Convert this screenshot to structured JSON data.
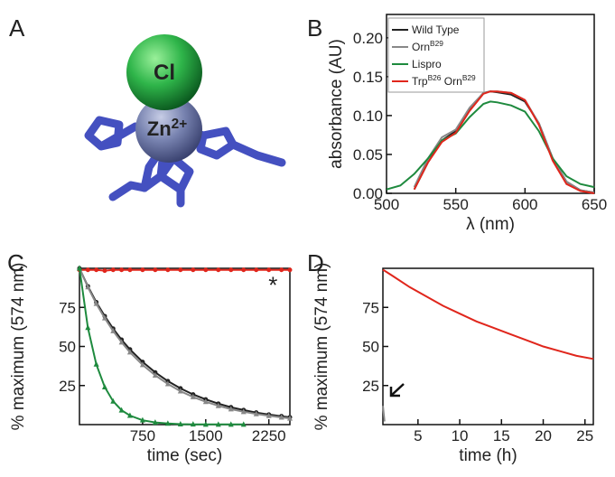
{
  "figure_labels": [
    "A",
    "B",
    "C",
    "D"
  ],
  "molecule": {
    "labels": [
      "Cl",
      "Zn2+"
    ]
  },
  "chart_data": [
    {
      "type": "line",
      "ylabel": "absorbance (AU)",
      "xlabel": "λ (nm)",
      "x": [
        500,
        510,
        520,
        530,
        540,
        550,
        560,
        570,
        575,
        580,
        590,
        600,
        610,
        620,
        630,
        640,
        650
      ],
      "xlim": [
        500,
        650
      ],
      "xticks": [
        500,
        550,
        600,
        650
      ],
      "ylim": [
        0,
        0.23
      ],
      "yticks": [
        {
          "value": 0,
          "label": "0.00"
        },
        {
          "value": 0.05,
          "label": "0.05"
        },
        {
          "value": 0.1,
          "label": "0.10"
        },
        {
          "value": 0.15,
          "label": "0.15"
        },
        {
          "value": 0.2,
          "label": "0.20"
        }
      ],
      "legend": "upper left",
      "series": [
        {
          "name": "Wild Type",
          "color": "#222222",
          "values": [
            null,
            null,
            0.005,
            0.04,
            0.068,
            0.08,
            0.108,
            0.129,
            0.131,
            0.13,
            0.127,
            0.118,
            0.09,
            0.045,
            0.015,
            0.004,
            0.001
          ]
        },
        {
          "name": "OrnB29",
          "color": "#888888",
          "values": [
            null,
            null,
            0.008,
            0.045,
            0.072,
            0.082,
            0.11,
            0.129,
            0.131,
            0.131,
            0.129,
            0.12,
            0.09,
            0.045,
            0.015,
            0.004,
            0.001
          ]
        },
        {
          "name": "Lispro",
          "color": "#1e8a3e",
          "values": [
            0.005,
            0.01,
            0.025,
            0.045,
            0.068,
            0.077,
            0.098,
            0.115,
            0.118,
            0.117,
            0.113,
            0.105,
            0.08,
            0.045,
            0.022,
            0.012,
            0.008
          ]
        },
        {
          "name": "TrpB26 OrnB29",
          "color": "#e0261c",
          "values": [
            null,
            null,
            0.005,
            0.04,
            0.066,
            0.078,
            0.106,
            0.128,
            0.131,
            0.131,
            0.129,
            0.12,
            0.088,
            0.042,
            0.012,
            0.003,
            0
          ]
        }
      ]
    },
    {
      "type": "line",
      "ylabel": "% maximum (574 nm)",
      "xlabel": "time (sec)",
      "x": [
        0,
        100,
        200,
        300,
        400,
        500,
        600,
        750,
        900,
        1050,
        1200,
        1350,
        1500,
        1650,
        1800,
        1950,
        2100,
        2250,
        2400,
        2500
      ],
      "xlim": [
        0,
        2500
      ],
      "xticks": [
        750,
        1500,
        2250
      ],
      "ylim": [
        0,
        100
      ],
      "yticks": [
        25,
        50,
        75
      ],
      "annotations": [
        {
          "text": "*",
          "x": 2300,
          "y": 91
        }
      ],
      "series": [
        {
          "color": "#e0261c",
          "marker": "circle",
          "values": [
            99,
            99,
            99,
            98.5,
            99,
            99,
            99,
            99,
            99,
            99,
            99,
            99,
            99,
            99,
            99,
            99,
            99,
            99,
            99,
            99
          ]
        },
        {
          "color": "#222222",
          "marker": "circle",
          "values": [
            100,
            88.5,
            78.3,
            69.4,
            61.4,
            54.3,
            48.1,
            40.1,
            33.4,
            27.8,
            23.2,
            19.3,
            16.1,
            13.4,
            11.1,
            9.3,
            7.7,
            6.4,
            5.4,
            4.7
          ]
        },
        {
          "color": "#888888",
          "marker": "triangle",
          "values": [
            100,
            88,
            77.4,
            68.1,
            59.9,
            52.7,
            46.3,
            38.2,
            31.5,
            26,
            21.4,
            17.7,
            14.6,
            12,
            9.9,
            8.2,
            6.8,
            5.6,
            4.6,
            4
          ]
        },
        {
          "color": "#1e8a3e",
          "marker": "triangle",
          "values": [
            100,
            62,
            38.6,
            24,
            14.9,
            9.2,
            5.8,
            2.8,
            1.4,
            0.7,
            0.3,
            0.2,
            0.1,
            0.1,
            0.1,
            0.1,
            null,
            null,
            null,
            null
          ]
        }
      ]
    },
    {
      "type": "line",
      "ylabel": "% maximum (574 nm)",
      "xlabel": "time (h)",
      "x": [
        0.8,
        1,
        2,
        4,
        6,
        8,
        10,
        12,
        14,
        16,
        18,
        20,
        22,
        24,
        26
      ],
      "xlim": [
        0.8,
        26
      ],
      "xticks": [
        5,
        10,
        15,
        20,
        25
      ],
      "ylim": [
        0,
        100
      ],
      "yticks": [
        25,
        50,
        75
      ],
      "series": [
        {
          "color": "#e0261c",
          "values": [
            99,
            98.5,
            95,
            88,
            82,
            76,
            71,
            66,
            62,
            58,
            54,
            50,
            47,
            44,
            42
          ]
        },
        {
          "color": "#888888",
          "values": [
            12,
            2,
            null,
            null,
            null,
            null,
            null,
            null,
            null,
            null,
            null,
            null,
            null,
            null,
            null
          ]
        }
      ]
    }
  ]
}
